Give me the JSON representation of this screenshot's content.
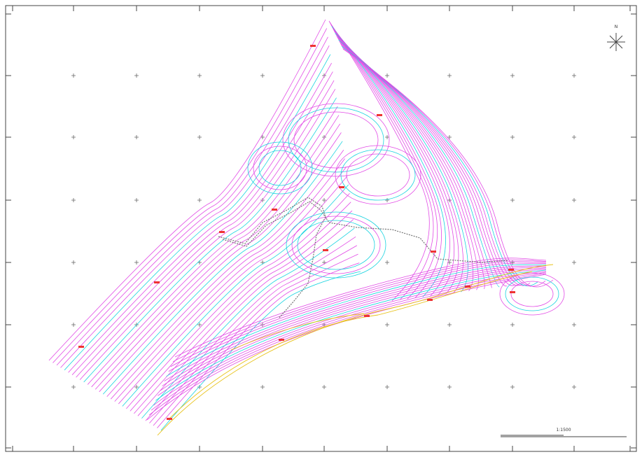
{
  "north_arrow": {
    "label": "N"
  },
  "scale_bar": {
    "label": "1:1500"
  }
}
